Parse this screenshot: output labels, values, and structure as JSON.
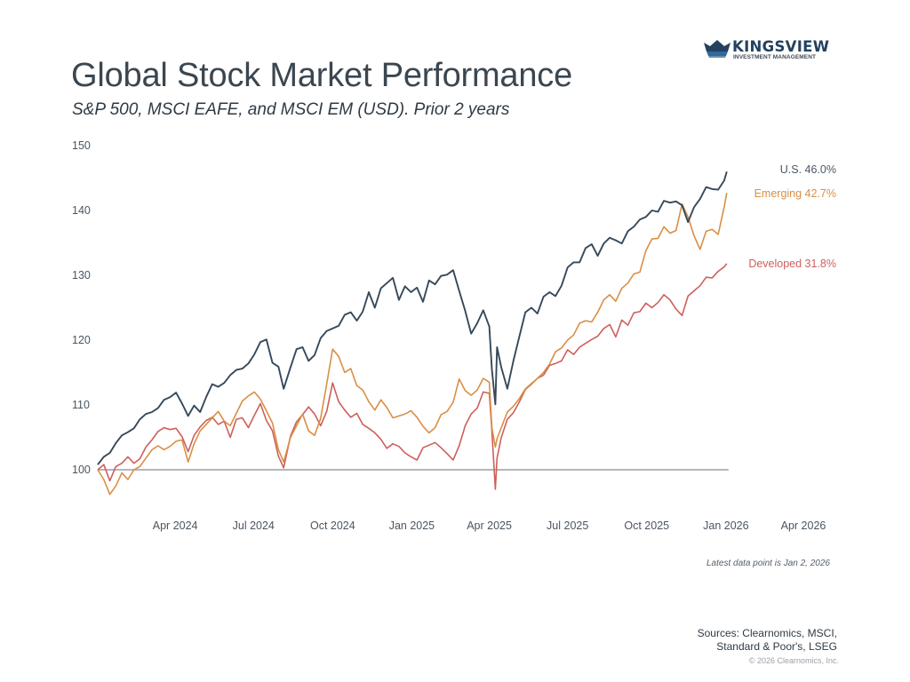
{
  "brand": {
    "name": "KINGSVIEW",
    "tagline": "INVESTMENT MANAGEMENT",
    "colors": {
      "primary": "#24415f",
      "accent": "#2f6a9a"
    }
  },
  "header": {
    "title": "Global Stock Market Performance",
    "subtitle": "S&P 500, MSCI EAFE, and MSCI EM (USD). Prior 2 years"
  },
  "footer": {
    "latest_note": "Latest data point is Jan 2, 2026",
    "sources_line1": "Sources: Clearnomics, MSCI,",
    "sources_line2": "Standard & Poor's, LSEG",
    "copyright": "© 2026 Clearnomics, Inc."
  },
  "chart_data": {
    "type": "line",
    "title": "Global Stock Market Performance",
    "subtitle": "S&P 500, MSCI EAFE, and MSCI EM (USD). Prior 2 years",
    "xlabel": "",
    "ylabel": "",
    "ylim": [
      100,
      150
    ],
    "xlim": [
      "2024-01-02",
      "2026-04-01"
    ],
    "yticks": [
      "100",
      "110",
      "120",
      "130",
      "140",
      "150"
    ],
    "xticks": [
      {
        "date": "2024-04-01",
        "label": "Apr 2024"
      },
      {
        "date": "2024-07-01",
        "label": "Jul 2024"
      },
      {
        "date": "2024-10-01",
        "label": "Oct 2024"
      },
      {
        "date": "2025-01-01",
        "label": "Jan 2025"
      },
      {
        "date": "2025-04-01",
        "label": "Apr 2025"
      },
      {
        "date": "2025-07-01",
        "label": "Jul 2025"
      },
      {
        "date": "2025-10-01",
        "label": "Oct 2025"
      },
      {
        "date": "2026-01-01",
        "label": "Jan 2026"
      },
      {
        "date": "2026-04-01",
        "label": "Apr 2026"
      }
    ],
    "grid": false,
    "baseline": 100,
    "legend": "end-of-line labels, right",
    "series": [
      {
        "name": "U.S.",
        "end_label": "U.S. 46.0%",
        "color": "#36495a",
        "x": [
          "2024-01-02",
          "2024-01-09",
          "2024-01-16",
          "2024-01-23",
          "2024-01-30",
          "2024-02-06",
          "2024-02-13",
          "2024-02-20",
          "2024-02-27",
          "2024-03-05",
          "2024-03-12",
          "2024-03-19",
          "2024-03-26",
          "2024-04-02",
          "2024-04-09",
          "2024-04-16",
          "2024-04-23",
          "2024-04-30",
          "2024-05-07",
          "2024-05-14",
          "2024-05-21",
          "2024-05-28",
          "2024-06-04",
          "2024-06-11",
          "2024-06-18",
          "2024-06-25",
          "2024-07-02",
          "2024-07-09",
          "2024-07-16",
          "2024-07-23",
          "2024-07-30",
          "2024-08-05",
          "2024-08-13",
          "2024-08-20",
          "2024-08-27",
          "2024-09-03",
          "2024-09-10",
          "2024-09-17",
          "2024-09-24",
          "2024-10-01",
          "2024-10-08",
          "2024-10-15",
          "2024-10-22",
          "2024-10-29",
          "2024-11-05",
          "2024-11-12",
          "2024-11-19",
          "2024-11-26",
          "2024-12-03",
          "2024-12-10",
          "2024-12-17",
          "2024-12-24",
          "2024-12-31",
          "2025-01-07",
          "2025-01-14",
          "2025-01-21",
          "2025-01-28",
          "2025-02-04",
          "2025-02-11",
          "2025-02-18",
          "2025-02-25",
          "2025-03-04",
          "2025-03-11",
          "2025-03-18",
          "2025-03-25",
          "2025-04-01",
          "2025-04-04",
          "2025-04-08",
          "2025-04-10",
          "2025-04-15",
          "2025-04-22",
          "2025-04-29",
          "2025-05-06",
          "2025-05-13",
          "2025-05-20",
          "2025-05-27",
          "2025-06-03",
          "2025-06-10",
          "2025-06-17",
          "2025-06-24",
          "2025-07-01",
          "2025-07-08",
          "2025-07-15",
          "2025-07-22",
          "2025-07-29",
          "2025-08-05",
          "2025-08-12",
          "2025-08-19",
          "2025-08-26",
          "2025-09-02",
          "2025-09-09",
          "2025-09-16",
          "2025-09-23",
          "2025-09-30",
          "2025-10-07",
          "2025-10-14",
          "2025-10-21",
          "2025-10-28",
          "2025-11-04",
          "2025-11-11",
          "2025-11-18",
          "2025-11-25",
          "2025-12-02",
          "2025-12-09",
          "2025-12-16",
          "2025-12-23",
          "2025-12-30",
          "2026-01-02"
        ],
        "values": [
          100.8,
          102.0,
          102.6,
          104.1,
          105.3,
          105.8,
          106.4,
          107.8,
          108.6,
          108.9,
          109.5,
          110.8,
          111.2,
          111.9,
          110.2,
          108.3,
          109.9,
          108.9,
          111.2,
          113.2,
          112.8,
          113.4,
          114.6,
          115.4,
          115.6,
          116.4,
          117.8,
          119.7,
          120.1,
          116.5,
          115.9,
          112.5,
          115.8,
          118.6,
          118.9,
          116.8,
          117.7,
          120.3,
          121.4,
          121.8,
          122.2,
          123.9,
          124.3,
          123.0,
          124.4,
          127.4,
          125.0,
          128.0,
          128.8,
          129.6,
          126.2,
          128.3,
          127.4,
          128.1,
          125.9,
          129.2,
          128.6,
          129.9,
          130.1,
          130.8,
          127.6,
          124.5,
          121.0,
          122.6,
          124.6,
          122.1,
          115.5,
          110.1,
          118.9,
          115.8,
          112.5,
          116.8,
          120.6,
          124.3,
          125.0,
          124.1,
          126.7,
          127.4,
          126.8,
          128.4,
          131.2,
          132.0,
          132.0,
          134.2,
          134.8,
          133.0,
          134.9,
          135.8,
          135.4,
          134.9,
          136.8,
          137.5,
          138.6,
          139.0,
          140.0,
          139.8,
          141.5,
          141.2,
          141.4,
          140.8,
          138.2,
          140.5,
          141.8,
          143.6,
          143.3,
          143.2,
          144.6,
          146.0
        ]
      },
      {
        "name": "Emerging",
        "end_label": "Emerging 42.7%",
        "color": "#d98f45",
        "x": [
          "2024-01-02",
          "2024-01-09",
          "2024-01-16",
          "2024-01-23",
          "2024-01-30",
          "2024-02-06",
          "2024-02-13",
          "2024-02-20",
          "2024-02-27",
          "2024-03-05",
          "2024-03-12",
          "2024-03-19",
          "2024-03-26",
          "2024-04-02",
          "2024-04-09",
          "2024-04-16",
          "2024-04-23",
          "2024-04-30",
          "2024-05-07",
          "2024-05-14",
          "2024-05-21",
          "2024-05-28",
          "2024-06-04",
          "2024-06-11",
          "2024-06-18",
          "2024-06-25",
          "2024-07-02",
          "2024-07-09",
          "2024-07-16",
          "2024-07-23",
          "2024-07-30",
          "2024-08-05",
          "2024-08-13",
          "2024-08-20",
          "2024-08-27",
          "2024-09-03",
          "2024-09-10",
          "2024-09-17",
          "2024-09-24",
          "2024-10-01",
          "2024-10-08",
          "2024-10-15",
          "2024-10-22",
          "2024-10-29",
          "2024-11-05",
          "2024-11-12",
          "2024-11-19",
          "2024-11-26",
          "2024-12-03",
          "2024-12-10",
          "2024-12-17",
          "2024-12-24",
          "2024-12-31",
          "2025-01-07",
          "2025-01-14",
          "2025-01-21",
          "2025-01-28",
          "2025-02-04",
          "2025-02-11",
          "2025-02-18",
          "2025-02-25",
          "2025-03-04",
          "2025-03-11",
          "2025-03-18",
          "2025-03-25",
          "2025-04-01",
          "2025-04-04",
          "2025-04-08",
          "2025-04-10",
          "2025-04-15",
          "2025-04-22",
          "2025-04-29",
          "2025-05-06",
          "2025-05-13",
          "2025-05-20",
          "2025-05-27",
          "2025-06-03",
          "2025-06-10",
          "2025-06-17",
          "2025-06-24",
          "2025-07-01",
          "2025-07-08",
          "2025-07-15",
          "2025-07-22",
          "2025-07-29",
          "2025-08-05",
          "2025-08-12",
          "2025-08-19",
          "2025-08-26",
          "2025-09-02",
          "2025-09-09",
          "2025-09-16",
          "2025-09-23",
          "2025-09-30",
          "2025-10-07",
          "2025-10-14",
          "2025-10-21",
          "2025-10-28",
          "2025-11-04",
          "2025-11-11",
          "2025-11-18",
          "2025-11-25",
          "2025-12-02",
          "2025-12-09",
          "2025-12-16",
          "2025-12-23",
          "2025-12-30",
          "2026-01-02"
        ],
        "values": [
          100.0,
          98.5,
          96.2,
          97.5,
          99.5,
          98.5,
          100.0,
          100.5,
          101.8,
          103.1,
          103.7,
          103.1,
          103.6,
          104.4,
          104.6,
          101.2,
          104.0,
          106.0,
          107.0,
          108.0,
          109.0,
          107.5,
          106.8,
          108.7,
          110.6,
          111.4,
          112.0,
          110.9,
          109.1,
          107.2,
          103.1,
          101.2,
          105.0,
          106.8,
          108.6,
          106.0,
          105.3,
          107.9,
          113.2,
          118.6,
          117.5,
          115.0,
          115.6,
          113.0,
          112.3,
          110.5,
          109.2,
          110.8,
          109.6,
          108.0,
          108.3,
          108.6,
          109.1,
          108.1,
          106.7,
          105.7,
          106.5,
          108.5,
          109.0,
          110.4,
          114.0,
          112.2,
          111.5,
          112.3,
          114.1,
          113.5,
          106.5,
          103.5,
          104.8,
          106.5,
          108.9,
          109.8,
          111.0,
          112.5,
          113.3,
          114.1,
          115.0,
          116.3,
          118.2,
          118.8,
          120.0,
          120.8,
          122.6,
          123.0,
          122.8,
          124.3,
          126.2,
          127.0,
          126.0,
          128.0,
          128.8,
          130.2,
          130.5,
          133.8,
          135.6,
          135.7,
          137.5,
          136.5,
          136.9,
          141.0,
          139.0,
          136.1,
          134.0,
          136.8,
          137.1,
          136.3,
          140.5,
          142.7
        ]
      },
      {
        "name": "Developed",
        "end_label": "Developed 31.8%",
        "color": "#cd5f5c",
        "x": [
          "2024-01-02",
          "2024-01-09",
          "2024-01-16",
          "2024-01-23",
          "2024-01-30",
          "2024-02-06",
          "2024-02-13",
          "2024-02-20",
          "2024-02-27",
          "2024-03-05",
          "2024-03-12",
          "2024-03-19",
          "2024-03-26",
          "2024-04-02",
          "2024-04-09",
          "2024-04-16",
          "2024-04-23",
          "2024-04-30",
          "2024-05-07",
          "2024-05-14",
          "2024-05-21",
          "2024-05-28",
          "2024-06-04",
          "2024-06-11",
          "2024-06-18",
          "2024-06-25",
          "2024-07-02",
          "2024-07-09",
          "2024-07-16",
          "2024-07-23",
          "2024-07-30",
          "2024-08-05",
          "2024-08-13",
          "2024-08-20",
          "2024-08-27",
          "2024-09-03",
          "2024-09-10",
          "2024-09-17",
          "2024-09-24",
          "2024-10-01",
          "2024-10-08",
          "2024-10-15",
          "2024-10-22",
          "2024-10-29",
          "2024-11-05",
          "2024-11-12",
          "2024-11-19",
          "2024-11-26",
          "2024-12-03",
          "2024-12-10",
          "2024-12-17",
          "2024-12-24",
          "2024-12-31",
          "2025-01-07",
          "2025-01-14",
          "2025-01-21",
          "2025-01-28",
          "2025-02-04",
          "2025-02-11",
          "2025-02-18",
          "2025-02-25",
          "2025-03-04",
          "2025-03-11",
          "2025-03-18",
          "2025-03-25",
          "2025-04-01",
          "2025-04-04",
          "2025-04-08",
          "2025-04-10",
          "2025-04-15",
          "2025-04-22",
          "2025-04-29",
          "2025-05-06",
          "2025-05-13",
          "2025-05-20",
          "2025-05-27",
          "2025-06-03",
          "2025-06-10",
          "2025-06-17",
          "2025-06-24",
          "2025-07-01",
          "2025-07-08",
          "2025-07-15",
          "2025-07-22",
          "2025-07-29",
          "2025-08-05",
          "2025-08-12",
          "2025-08-19",
          "2025-08-26",
          "2025-09-02",
          "2025-09-09",
          "2025-09-16",
          "2025-09-23",
          "2025-09-30",
          "2025-10-07",
          "2025-10-14",
          "2025-10-21",
          "2025-10-28",
          "2025-11-04",
          "2025-11-11",
          "2025-11-18",
          "2025-11-25",
          "2025-12-02",
          "2025-12-09",
          "2025-12-16",
          "2025-12-23",
          "2025-12-30",
          "2026-01-02"
        ],
        "values": [
          100.0,
          100.8,
          98.3,
          100.5,
          101.0,
          102.0,
          101.0,
          101.7,
          103.5,
          104.6,
          105.9,
          106.5,
          106.2,
          106.4,
          105.1,
          102.8,
          105.3,
          106.6,
          107.6,
          108.1,
          107.0,
          107.5,
          105.0,
          107.8,
          108.0,
          106.5,
          108.4,
          110.2,
          107.6,
          106.0,
          102.1,
          100.3,
          105.2,
          107.4,
          108.5,
          109.7,
          108.6,
          106.8,
          109.0,
          113.4,
          110.5,
          109.2,
          108.1,
          108.7,
          107.0,
          106.4,
          105.7,
          104.7,
          103.3,
          104.0,
          103.6,
          102.6,
          102.0,
          101.5,
          103.4,
          103.8,
          104.2,
          103.4,
          102.5,
          101.5,
          103.7,
          106.8,
          108.6,
          109.5,
          112.0,
          111.8,
          106.0,
          97.0,
          101.8,
          105.0,
          107.8,
          108.8,
          110.5,
          112.4,
          113.2,
          114.1,
          114.6,
          116.1,
          116.4,
          116.8,
          118.5,
          117.8,
          118.9,
          119.5,
          120.1,
          120.6,
          121.8,
          122.4,
          120.5,
          123.1,
          122.3,
          124.2,
          124.4,
          125.7,
          125.0,
          125.8,
          127.0,
          126.2,
          124.8,
          123.8,
          126.8,
          127.6,
          128.4,
          129.7,
          129.6,
          130.6,
          131.3,
          131.8
        ]
      }
    ]
  }
}
